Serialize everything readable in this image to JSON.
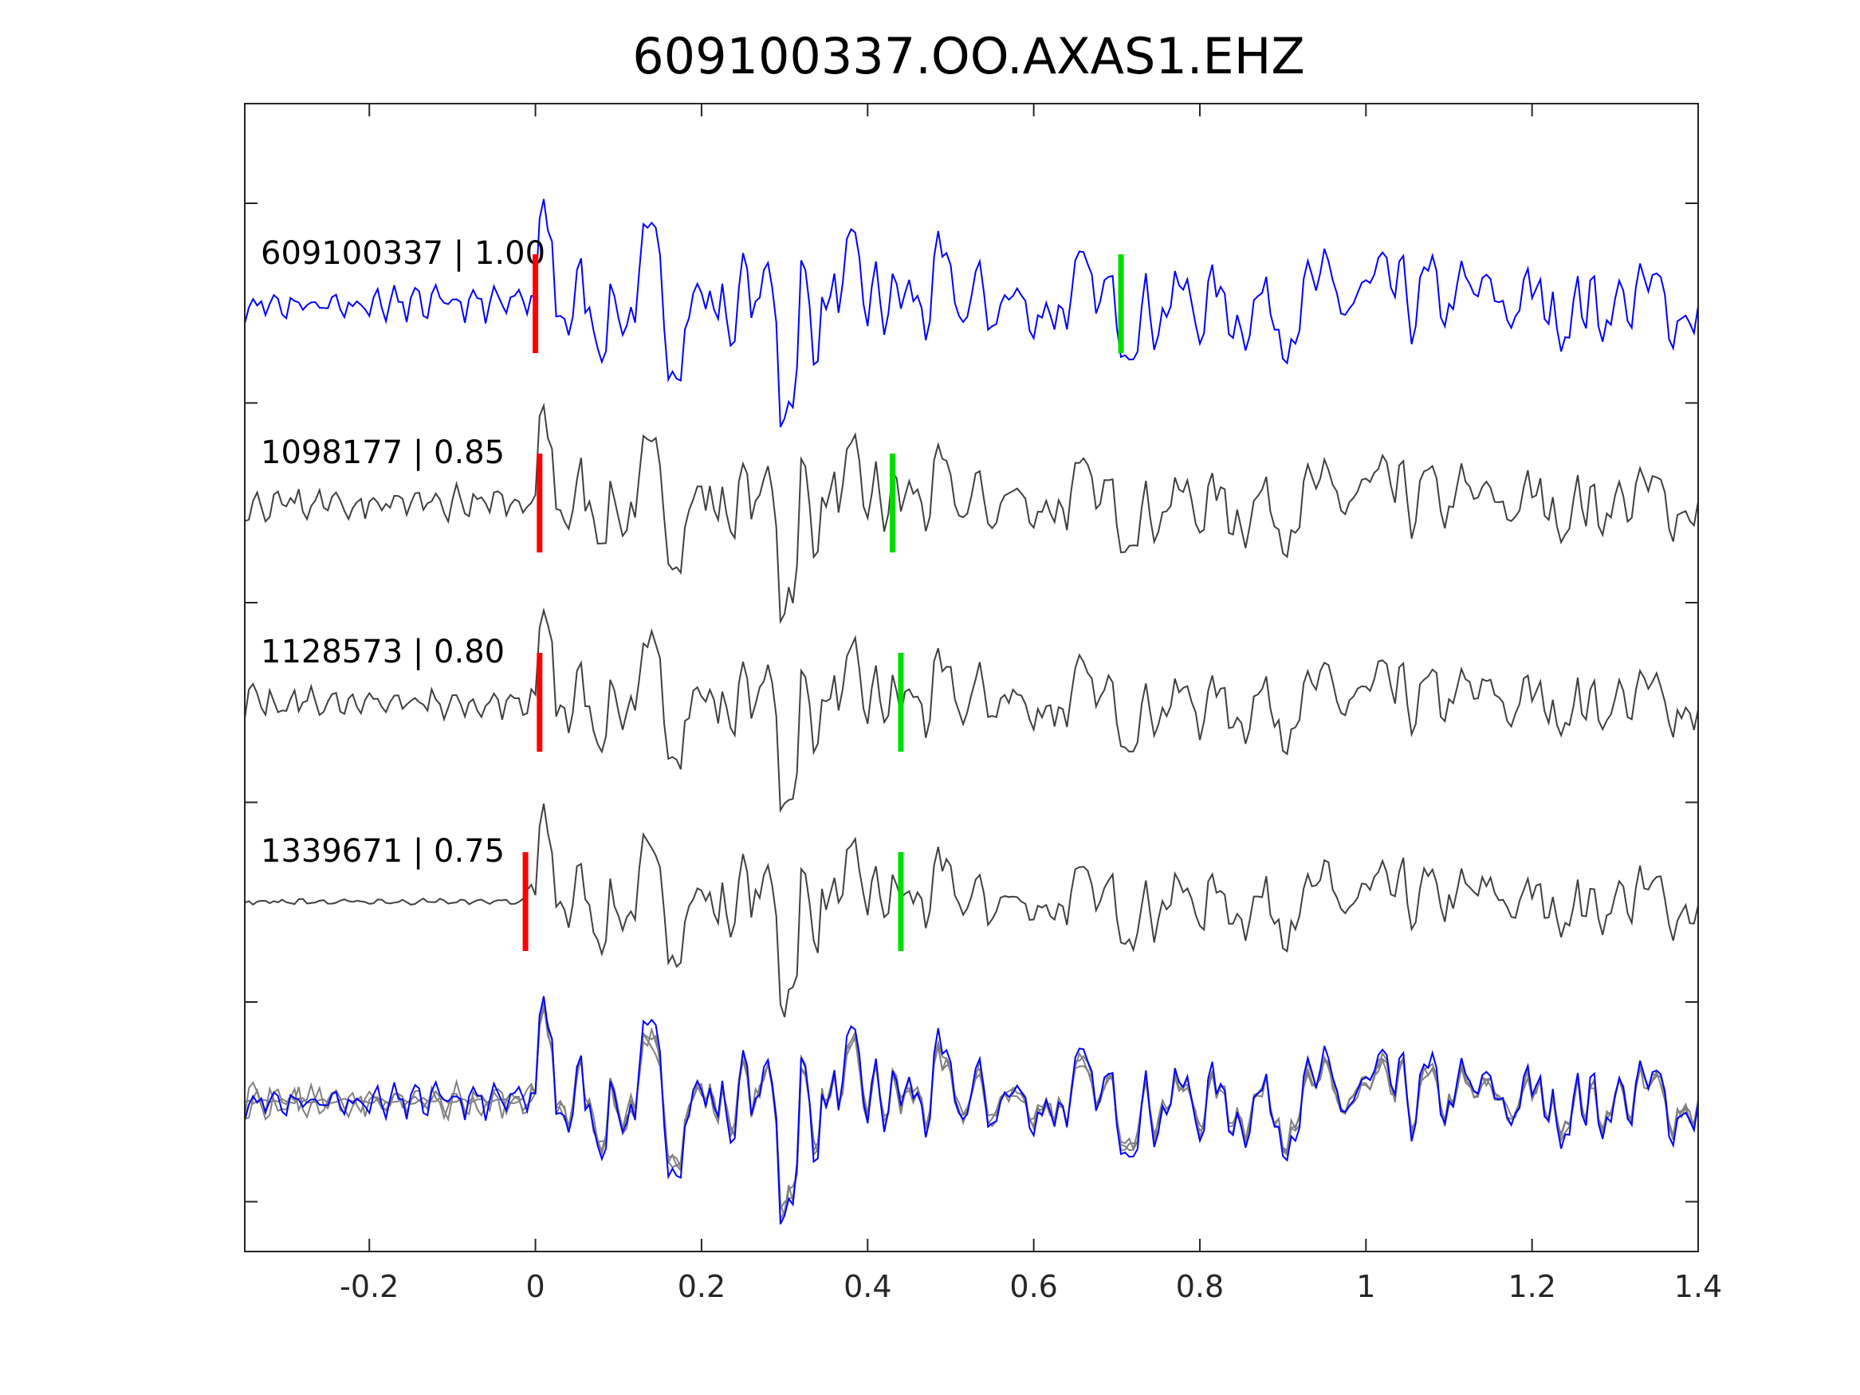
{
  "chart_data": {
    "type": "line",
    "title": "609100337.OO.AXAS1.EHZ",
    "xlabel": "",
    "ylabel": "",
    "xlim": [
      -0.35,
      1.4
    ],
    "xticks": [
      -0.2,
      0,
      0.2,
      0.4,
      0.6,
      0.8,
      1,
      1.2,
      1.4
    ],
    "xtick_labels": [
      "-0.2",
      "0",
      "0.2",
      "0.4",
      "0.6",
      "0.8",
      "1",
      "1.2",
      "1.4"
    ],
    "y_tick_count": 6,
    "grid": false,
    "traces": [
      {
        "label": "609100337 | 1.00",
        "event_id": "609100337",
        "cc": 1.0,
        "p_pick": 0.0,
        "s_pick": 0.705,
        "color": "#0000ff",
        "seed": 11
      },
      {
        "label": "1098177 | 0.85",
        "event_id": "1098177",
        "cc": 0.85,
        "p_pick": 0.005,
        "s_pick": 0.43,
        "color": "#404040",
        "seed": 23
      },
      {
        "label": "1128573 | 0.80",
        "event_id": "1128573",
        "cc": 0.8,
        "p_pick": 0.005,
        "s_pick": 0.44,
        "color": "#404040",
        "seed": 37
      },
      {
        "label": "1339671 | 0.75",
        "event_id": "1339671",
        "cc": 0.75,
        "p_pick": -0.012,
        "s_pick": 0.44,
        "color": "#404040",
        "seed": 53
      }
    ],
    "stack": {
      "description_label": "",
      "overlay_color": "#808080",
      "master_color": "#0000ff"
    },
    "p_color": "#ff0000",
    "s_color": "#00dd00"
  }
}
